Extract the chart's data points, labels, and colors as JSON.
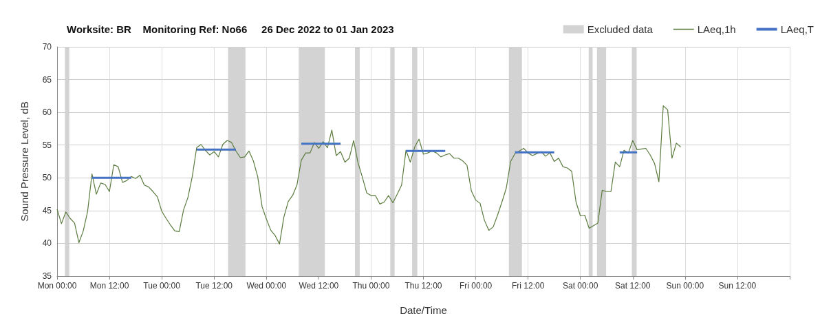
{
  "chart_data": {
    "type": "line",
    "title": "Worksite: BR    Monitoring Ref: No66     26 Dec 2022 to 01 Jan 2023",
    "xlabel": "Date/Time",
    "ylabel": "Sound Pressure Level, dB",
    "xlim": [
      "2022-12-26T00:00",
      "2023-01-02T00:00"
    ],
    "xticks": [
      {
        "value": "2022-12-26T00:00",
        "label": "Mon 00:00"
      },
      {
        "value": "2022-12-26T12:00",
        "label": "Mon 12:00"
      },
      {
        "value": "2022-12-27T00:00",
        "label": "Tue 00:00"
      },
      {
        "value": "2022-12-27T12:00",
        "label": "Tue 12:00"
      },
      {
        "value": "2022-12-28T00:00",
        "label": "Wed 00:00"
      },
      {
        "value": "2022-12-28T12:00",
        "label": "Wed 12:00"
      },
      {
        "value": "2022-12-29T00:00",
        "label": "Thu 00:00"
      },
      {
        "value": "2022-12-29T12:00",
        "label": "Thu 12:00"
      },
      {
        "value": "2022-12-30T00:00",
        "label": "Fri 00:00"
      },
      {
        "value": "2022-12-30T12:00",
        "label": "Fri 12:00"
      },
      {
        "value": "2022-12-31T00:00",
        "label": "Sat 00:00"
      },
      {
        "value": "2022-12-31T12:00",
        "label": "Sat 12:00"
      },
      {
        "value": "2023-01-01T00:00",
        "label": "Sun 00:00"
      },
      {
        "value": "2023-01-01T12:00",
        "label": "Sun 12:00"
      },
      {
        "value": "2023-01-02T00:00",
        "label": null
      }
    ],
    "ylim": [
      35,
      70
    ],
    "yticks": [
      35,
      40,
      45,
      50,
      55,
      60,
      65,
      70
    ],
    "grid": true,
    "legend": "top right",
    "marker": "none",
    "line_style": "solid",
    "series": [
      {
        "name": "LAeq,1h",
        "color": "#5b7b3e",
        "x": [
          "2022-12-26T00:00",
          "2022-12-26T01:00",
          "2022-12-26T02:00",
          "2022-12-26T03:00",
          "2022-12-26T04:00",
          "2022-12-26T05:00",
          "2022-12-26T06:00",
          "2022-12-26T07:00",
          "2022-12-26T08:00",
          "2022-12-26T09:00",
          "2022-12-26T10:00",
          "2022-12-26T11:00",
          "2022-12-26T12:00",
          "2022-12-26T13:00",
          "2022-12-26T14:00",
          "2022-12-26T15:00",
          "2022-12-26T16:00",
          "2022-12-26T17:00",
          "2022-12-26T18:00",
          "2022-12-26T19:00",
          "2022-12-26T20:00",
          "2022-12-26T21:00",
          "2022-12-26T22:00",
          "2022-12-26T23:00",
          "2022-12-27T00:00",
          "2022-12-27T01:00",
          "2022-12-27T02:00",
          "2022-12-27T03:00",
          "2022-12-27T04:00",
          "2022-12-27T05:00",
          "2022-12-27T06:00",
          "2022-12-27T07:00",
          "2022-12-27T08:00",
          "2022-12-27T09:00",
          "2022-12-27T10:00",
          "2022-12-27T11:00",
          "2022-12-27T12:00",
          "2022-12-27T13:00",
          "2022-12-27T14:00",
          "2022-12-27T15:00",
          "2022-12-27T16:00",
          "2022-12-27T17:00",
          "2022-12-27T18:00",
          "2022-12-27T19:00",
          "2022-12-27T20:00",
          "2022-12-27T21:00",
          "2022-12-27T22:00",
          "2022-12-27T23:00",
          "2022-12-28T00:00",
          "2022-12-28T01:00",
          "2022-12-28T02:00",
          "2022-12-28T03:00",
          "2022-12-28T04:00",
          "2022-12-28T05:00",
          "2022-12-28T06:00",
          "2022-12-28T07:00",
          "2022-12-28T08:00",
          "2022-12-28T09:00",
          "2022-12-28T10:00",
          "2022-12-28T11:00",
          "2022-12-28T12:00",
          "2022-12-28T13:00",
          "2022-12-28T14:00",
          "2022-12-28T15:00",
          "2022-12-28T16:00",
          "2022-12-28T17:00",
          "2022-12-28T18:00",
          "2022-12-28T19:00",
          "2022-12-28T20:00",
          "2022-12-28T21:00",
          "2022-12-28T22:00",
          "2022-12-28T23:00",
          "2022-12-29T00:00",
          "2022-12-29T01:00",
          "2022-12-29T02:00",
          "2022-12-29T03:00",
          "2022-12-29T04:00",
          "2022-12-29T05:00",
          "2022-12-29T06:00",
          "2022-12-29T07:00",
          "2022-12-29T08:00",
          "2022-12-29T09:00",
          "2022-12-29T10:00",
          "2022-12-29T11:00",
          "2022-12-29T12:00",
          "2022-12-29T13:00",
          "2022-12-29T14:00",
          "2022-12-29T15:00",
          "2022-12-29T16:00",
          "2022-12-29T17:00",
          "2022-12-29T18:00",
          "2022-12-29T19:00",
          "2022-12-29T20:00",
          "2022-12-29T21:00",
          "2022-12-29T22:00",
          "2022-12-29T23:00",
          "2022-12-30T00:00",
          "2022-12-30T01:00",
          "2022-12-30T02:00",
          "2022-12-30T03:00",
          "2022-12-30T04:00",
          "2022-12-30T05:00",
          "2022-12-30T06:00",
          "2022-12-30T07:00",
          "2022-12-30T08:00",
          "2022-12-30T09:00",
          "2022-12-30T10:00",
          "2022-12-30T11:00",
          "2022-12-30T12:00",
          "2022-12-30T13:00",
          "2022-12-30T14:00",
          "2022-12-30T15:00",
          "2022-12-30T16:00",
          "2022-12-30T17:00",
          "2022-12-30T18:00",
          "2022-12-30T19:00",
          "2022-12-30T20:00",
          "2022-12-30T21:00",
          "2022-12-30T22:00",
          "2022-12-30T23:00",
          "2022-12-31T00:00",
          "2022-12-31T01:00",
          "2022-12-31T02:00",
          "2022-12-31T03:00",
          "2022-12-31T04:00",
          "2022-12-31T05:00",
          "2022-12-31T06:00",
          "2022-12-31T07:00",
          "2022-12-31T08:00",
          "2022-12-31T09:00",
          "2022-12-31T10:00",
          "2022-12-31T11:00",
          "2022-12-31T12:00",
          "2022-12-31T13:00",
          "2022-12-31T14:00",
          "2022-12-31T15:00",
          "2022-12-31T16:00",
          "2022-12-31T17:00",
          "2022-12-31T18:00",
          "2022-12-31T19:00",
          "2022-12-31T20:00",
          "2022-12-31T21:00",
          "2022-12-31T22:00",
          "2022-12-31T23:00"
        ],
        "values": [
          45.2,
          43.0,
          44.8,
          43.8,
          43.1,
          40.1,
          41.9,
          44.9,
          50.6,
          47.5,
          49.2,
          49.0,
          47.9,
          52.0,
          51.7,
          49.3,
          49.6,
          50.2,
          49.9,
          50.4,
          48.9,
          48.6,
          47.9,
          47.1,
          44.9,
          43.8,
          42.8,
          41.9,
          41.8,
          45.1,
          47.0,
          50.2,
          54.6,
          55.1,
          54.2,
          53.5,
          54.0,
          53.2,
          55.1,
          55.7,
          55.4,
          54.1,
          53.1,
          53.2,
          54.1,
          52.6,
          50.2,
          45.6,
          43.7,
          42.0,
          41.2,
          39.9,
          44.0,
          46.4,
          47.3,
          48.9,
          52.7,
          53.8,
          53.8,
          55.4,
          54.5,
          55.5,
          54.6,
          57.3,
          53.4,
          54.0,
          52.4,
          53.0,
          55.7,
          52.3,
          50.1,
          47.7,
          47.3,
          47.3,
          46.0,
          46.3,
          47.3,
          46.2,
          47.5,
          48.9,
          54.2,
          52.4,
          54.7,
          55.9,
          53.6,
          53.8,
          54.1,
          53.8,
          53.2,
          53.5,
          53.7,
          53.0,
          53.0,
          52.6,
          51.9,
          48.0,
          46.6,
          46.1,
          43.5,
          42.0,
          42.5,
          44.3,
          46.3,
          48.4,
          52.5,
          53.7,
          54.1,
          54.5,
          53.8,
          53.4,
          53.7,
          54.0,
          53.3,
          53.8,
          52.5,
          53.0,
          51.7,
          51.5,
          51.0,
          46.3,
          44.2,
          44.3,
          42.3,
          42.7,
          43.1,
          48.1,
          47.9,
          47.9,
          52.4,
          51.7,
          54.2,
          53.8,
          55.7,
          54.3,
          54.4,
          54.5,
          53.5,
          52.2,
          49.4,
          61.0,
          60.4,
          53.0,
          55.3,
          54.7
        ]
      },
      {
        "name": "LAeq,T",
        "color": "#4472c4",
        "x": [
          "2022-12-26T08:00",
          "2022-12-26T17:00",
          "2022-12-27T00:00",
          "2022-12-27T08:00",
          "2022-12-27T17:00",
          "2022-12-28T00:00",
          "2022-12-28T08:00",
          "2022-12-28T17:00",
          "2022-12-29T00:00",
          "2022-12-29T08:00",
          "2022-12-29T17:00",
          "2022-12-30T00:00",
          "2022-12-30T09:00",
          "2022-12-30T18:00",
          "2022-12-31T00:00",
          "2022-12-31T09:00",
          "2022-12-31T13:00"
        ],
        "values": [
          50.0,
          50.0,
          null,
          54.3,
          54.3,
          null,
          55.2,
          55.2,
          null,
          54.1,
          54.1,
          null,
          53.9,
          53.9,
          null,
          53.9,
          53.9
        ]
      }
    ],
    "bands": [
      {
        "axis": "x",
        "from": "2022-12-26T01:48",
        "to": "2022-12-26T02:48",
        "label": "Excluded data",
        "color": "#d3d3d3"
      },
      {
        "axis": "x",
        "from": "2022-12-27T15:12",
        "to": "2022-12-27T19:12",
        "color": "#d3d3d3"
      },
      {
        "axis": "x",
        "from": "2022-12-28T07:24",
        "to": "2022-12-28T13:24",
        "color": "#d3d3d3"
      },
      {
        "axis": "x",
        "from": "2022-12-28T20:18",
        "to": "2022-12-28T21:24",
        "color": "#d3d3d3"
      },
      {
        "axis": "x",
        "from": "2022-12-29T04:24",
        "to": "2022-12-29T05:24",
        "color": "#d3d3d3"
      },
      {
        "axis": "x",
        "from": "2022-12-29T09:24",
        "to": "2022-12-29T10:36",
        "color": "#d3d3d3"
      },
      {
        "axis": "x",
        "from": "2022-12-30T07:36",
        "to": "2022-12-30T10:36",
        "color": "#d3d3d3"
      },
      {
        "axis": "x",
        "from": "2022-12-31T01:54",
        "to": "2022-12-31T02:48",
        "color": "#d3d3d3"
      },
      {
        "axis": "x",
        "from": "2022-12-31T03:48",
        "to": "2022-12-31T05:54",
        "color": "#d3d3d3"
      },
      {
        "axis": "x",
        "from": "2022-12-31T11:48",
        "to": "2022-12-31T12:54",
        "color": "#d3d3d3"
      }
    ]
  }
}
